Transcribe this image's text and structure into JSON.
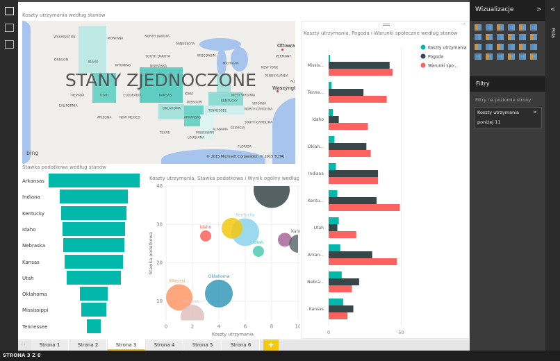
{
  "rail": {
    "icons": [
      "report-view-icon",
      "data-view-icon",
      "relationships-view-icon"
    ]
  },
  "map": {
    "title": "Koszty utrzymania według stanów",
    "country_label": "STANY ZJEDNOCZONE",
    "bing": "bing",
    "copyright1": "© 2015 Microsoft Corporation",
    "copyright2": "© 2015 TUTAJ",
    "cities": [
      "Ottawa",
      "Waszyngton"
    ],
    "labels": [
      "WASHINGTON",
      "OREGON",
      "CALIFORNIA",
      "NEVADA",
      "IDAHO",
      "MONTANA",
      "WYOMING",
      "UTAH",
      "COLORADO",
      "ARIZONA",
      "NEW MEXICO",
      "NORTH DAKOTA",
      "SOUTH DAKOTA",
      "NEBRASKA",
      "KANSAS",
      "OKLAHOMA",
      "TEXAS",
      "MINNESOTA",
      "IOWA",
      "MISSOURI",
      "ARKANSAS",
      "LOUISIANA",
      "WISCONSIN",
      "MICHIGAN",
      "KENTUCKY",
      "TENNESSEE",
      "MISSISSIPPI",
      "ALABAMA",
      "GEORGIA",
      "FLORIDA",
      "NORTH CAROLINA",
      "SOUTH CAROLINA",
      "VIRGINIA",
      "WEST VIRGINIA",
      "PENNSYLVANIA",
      "NEW YORK",
      "VERMONT",
      "N.J."
    ]
  },
  "chart_data": [
    {
      "type": "bar",
      "orientation": "horizontal-funnel",
      "title": "Stawka podatkowa według stanów",
      "categories": [
        "Arkansas",
        "Indiana",
        "Kentucky",
        "Idaho",
        "Nebraska",
        "Kansas",
        "Utah",
        "Oklahoma",
        "Mississippi",
        "Tennessee"
      ],
      "values": [
        39,
        29,
        28,
        27,
        26,
        25,
        23,
        12,
        11,
        6
      ],
      "color": "#01b8aa"
    },
    {
      "type": "scatter",
      "title": "Koszty utrzymania, Stawka podatkowa i Wynik ogólny według stanów i Stan",
      "xlabel": "Koszty utrzymania",
      "ylabel": "Stawka podatkowa",
      "xlim": [
        0,
        10
      ],
      "ylim": [
        5,
        40
      ],
      "xticks": [
        "0",
        "2",
        "4",
        "6",
        "8",
        "10"
      ],
      "yticks": [
        "10",
        "20",
        "30",
        "40"
      ],
      "grid": true,
      "points": [
        {
          "label": "",
          "x": 8,
          "y": 39,
          "r": 26,
          "color": "#374649"
        },
        {
          "label": "Kentucky",
          "x": 6,
          "y": 28,
          "r": 20,
          "color": "#8ad4eb"
        },
        {
          "label": "",
          "x": 5,
          "y": 29,
          "r": 15,
          "color": "#f2c80f"
        },
        {
          "label": "Idaho",
          "x": 3,
          "y": 27,
          "r": 8,
          "color": "#fd625e"
        },
        {
          "label": "Utah",
          "x": 7,
          "y": 23,
          "r": 8,
          "color": "#4fc9b5"
        },
        {
          "label": "",
          "x": 9,
          "y": 26,
          "r": 10,
          "color": "#a66999"
        },
        {
          "label": "Kansa",
          "x": 10,
          "y": 25,
          "r": 13,
          "color": "#5f6b6d"
        },
        {
          "label": "Oklahoma",
          "x": 4,
          "y": 12,
          "r": 20,
          "color": "#3599b8"
        },
        {
          "label": "Mississi...",
          "x": 1,
          "y": 11,
          "r": 19,
          "color": "#fe9666"
        },
        {
          "label": "Tenness...",
          "x": 2,
          "y": 6,
          "r": 17,
          "color": "#dfbfbf"
        }
      ]
    },
    {
      "type": "bar",
      "orientation": "horizontal",
      "title": "Koszty utrzymania, Pogoda i Warunki społeczne według stanów",
      "categories": [
        "Missis...",
        "Tenne...",
        "Idaho",
        "Oklah...",
        "Indiana",
        "Kentu...",
        "Utah",
        "Arkan...",
        "Nebra...",
        "Kansas"
      ],
      "xlim": [
        0,
        100
      ],
      "xticks": [
        "0",
        "50"
      ],
      "legend": "top-right",
      "series": [
        {
          "name": "Koszty utrzymania",
          "color": "#01b8aa",
          "values": [
            1,
            2,
            3,
            4,
            5,
            6,
            7,
            8,
            9,
            10
          ]
        },
        {
          "name": "Pogoda",
          "color": "#374649",
          "values": [
            42,
            24,
            7,
            26,
            34,
            33,
            6,
            30,
            21,
            17
          ]
        },
        {
          "name": "Warunki spo...",
          "color": "#fd625e",
          "values": [
            44,
            40,
            27,
            29,
            34,
            49,
            19,
            47,
            16,
            13
          ]
        }
      ]
    }
  ],
  "tabs": {
    "items": [
      "Strona 1",
      "Strona 2",
      "Strona 3",
      "Strona 4",
      "Strona 5",
      "Strona 6"
    ],
    "active": 2,
    "add": "+"
  },
  "status": "STRONA 3 Z 6",
  "panel": {
    "title": "Wizualizacje",
    "filters_title": "Filtry",
    "filters_level": "Filtry na poziomie strony",
    "filter_line1": "Koszty utrzymania",
    "filter_line2": "poniżej 11",
    "close": "✕",
    "expand": ">"
  },
  "pola": {
    "label": "Pola",
    "collapse": "<"
  }
}
